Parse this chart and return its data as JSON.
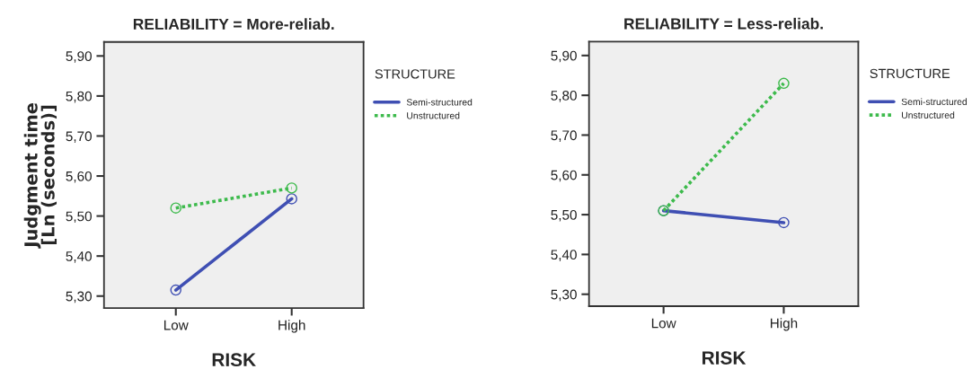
{
  "chart_data": [
    {
      "type": "line",
      "title": "RELIABILITY = More-reliab.",
      "xlabel": "RISK",
      "ylabel": "Judgment time\n[Ln (seconds)]",
      "legend_title": "STRUCTURE",
      "categories": [
        "Low",
        "High"
      ],
      "series": [
        {
          "name": "Semi-structured",
          "color": "#3f4fb3",
          "values": [
            5.315,
            5.543
          ],
          "line_style": "solid"
        },
        {
          "name": "Unstructured",
          "color": "#3dba4c",
          "values": [
            5.52,
            5.57
          ],
          "line_style": "dotted"
        }
      ],
      "ylim": [
        5.27,
        5.935
      ],
      "yticks": [
        {
          "value": 5.3,
          "label": "5,30"
        },
        {
          "value": 5.4,
          "label": "5,40"
        },
        {
          "value": 5.5,
          "label": "5,50"
        },
        {
          "value": 5.6,
          "label": "5,60"
        },
        {
          "value": 5.7,
          "label": "5,70"
        },
        {
          "value": 5.8,
          "label": "5,80"
        },
        {
          "value": 5.9,
          "label": "5,90"
        }
      ],
      "marker": "circle",
      "legend": "right"
    },
    {
      "type": "line",
      "title": "RELIABILITY = Less-reliab.",
      "xlabel": "RISK",
      "legend_title": "STRUCTURE",
      "categories": [
        "Low",
        "High"
      ],
      "series": [
        {
          "name": "Semi-structured",
          "color": "#3f4fb3",
          "values": [
            5.51,
            5.48
          ],
          "line_style": "solid"
        },
        {
          "name": "Unstructured",
          "color": "#3dba4c",
          "values": [
            5.51,
            5.83
          ],
          "line_style": "dotted"
        }
      ],
      "ylim": [
        5.27,
        5.935
      ],
      "yticks": [
        {
          "value": 5.3,
          "label": "5,30"
        },
        {
          "value": 5.4,
          "label": "5,40"
        },
        {
          "value": 5.5,
          "label": "5,50"
        },
        {
          "value": 5.6,
          "label": "5,60"
        },
        {
          "value": 5.7,
          "label": "5,70"
        },
        {
          "value": 5.8,
          "label": "5,80"
        },
        {
          "value": 5.9,
          "label": "5,90"
        }
      ],
      "marker": "circle",
      "legend": "right"
    }
  ]
}
